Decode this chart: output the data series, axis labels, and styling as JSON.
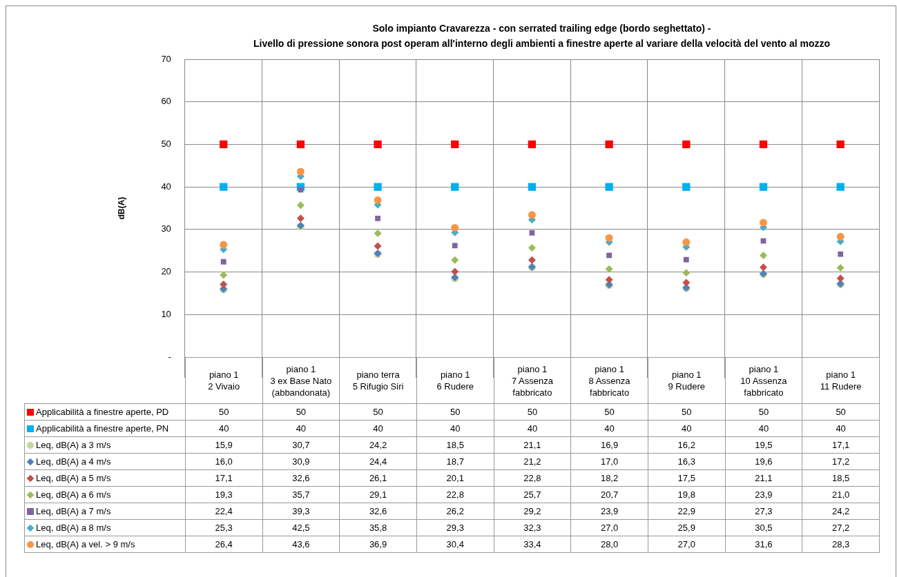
{
  "chart_data": {
    "type": "scatter",
    "title": "Solo impianto Cravarezza - con serrated trailing edge (bordo seghettato) -\nLivello di pressione sonora post operam all'interno degli ambienti a finestre aperte al variare della velocità del vento al mozzo",
    "ylabel": "dB(A)",
    "categories": [
      "piano 1\n2 Vivaio",
      "piano 1\n3 ex Base Nato (abbandonata)",
      "piano terra\n5 Rifugio Siri",
      "piano 1\n6 Rudere",
      "piano 1\n7 Assenza fabbricato",
      "piano 1\n8 Assenza fabbricato",
      "piano 1\n9 Rudere",
      "piano 1\n10 Assenza fabbricato",
      "piano 1\n11 Rudere"
    ],
    "ylim": [
      0,
      70
    ],
    "yticks": [
      {
        "value": 0,
        "label": "-"
      },
      10,
      20,
      30,
      40,
      50,
      60,
      70
    ],
    "grid": true,
    "legend": "bottom",
    "series": [
      {
        "name": "Applicabilità a finestre aperte, PD",
        "color": "#ff0000",
        "marker": "square",
        "values": [
          50,
          50,
          50,
          50,
          50,
          50,
          50,
          50,
          50
        ],
        "value_labels": [
          "50",
          "50",
          "50",
          "50",
          "50",
          "50",
          "50",
          "50",
          "50"
        ]
      },
      {
        "name": "Applicabilità a finestre aperte, PN",
        "color": "#00b0f0",
        "marker": "square",
        "values": [
          40,
          40,
          40,
          40,
          40,
          40,
          40,
          40,
          40
        ],
        "value_labels": [
          "40",
          "40",
          "40",
          "40",
          "40",
          "40",
          "40",
          "40",
          "40"
        ]
      },
      {
        "name": "Leq, dB(A) a 3 m/s",
        "color": "#c3d69b",
        "marker": "circle",
        "values": [
          15.9,
          30.7,
          24.2,
          18.5,
          21.1,
          16.9,
          16.2,
          19.5,
          17.1
        ],
        "value_labels": [
          "15,9",
          "30,7",
          "24,2",
          "18,5",
          "21,1",
          "16,9",
          "16,2",
          "19,5",
          "17,1"
        ]
      },
      {
        "name": "Leq, dB(A) a 4 m/s",
        "color": "#4f81bd",
        "marker": "diamond",
        "values": [
          16.0,
          30.9,
          24.4,
          18.7,
          21.2,
          17.0,
          16.3,
          19.6,
          17.2
        ],
        "value_labels": [
          "16,0",
          "30,9",
          "24,4",
          "18,7",
          "21,2",
          "17,0",
          "16,3",
          "19,6",
          "17,2"
        ]
      },
      {
        "name": "Leq, dB(A) a 5 m/s",
        "color": "#c0504d",
        "marker": "diamond",
        "values": [
          17.1,
          32.6,
          26.1,
          20.1,
          22.8,
          18.2,
          17.5,
          21.1,
          18.5
        ],
        "value_labels": [
          "17,1",
          "32,6",
          "26,1",
          "20,1",
          "22,8",
          "18,2",
          "17,5",
          "21,1",
          "18,5"
        ]
      },
      {
        "name": "Leq, dB(A) a 6 m/s",
        "color": "#9bbb59",
        "marker": "diamond",
        "values": [
          19.3,
          35.7,
          29.1,
          22.8,
          25.7,
          20.7,
          19.8,
          23.9,
          21.0
        ],
        "value_labels": [
          "19,3",
          "35,7",
          "29,1",
          "22,8",
          "25,7",
          "20,7",
          "19,8",
          "23,9",
          "21,0"
        ]
      },
      {
        "name": "Leq, dB(A) a 7 m/s",
        "color": "#8064a2",
        "marker": "square",
        "values": [
          22.4,
          39.3,
          32.6,
          26.2,
          29.2,
          23.9,
          22.9,
          27.3,
          24.2
        ],
        "value_labels": [
          "22,4",
          "39,3",
          "32,6",
          "26,2",
          "29,2",
          "23,9",
          "22,9",
          "27,3",
          "24,2"
        ]
      },
      {
        "name": "Leq, dB(A) a 8 m/s",
        "color": "#4bacc6",
        "marker": "diamond",
        "values": [
          25.3,
          42.5,
          35.8,
          29.3,
          32.3,
          27.0,
          25.9,
          30.5,
          27.2
        ],
        "value_labels": [
          "25,3",
          "42,5",
          "35,8",
          "29,3",
          "32,3",
          "27,0",
          "25,9",
          "30,5",
          "27,2"
        ]
      },
      {
        "name": "Leq, dB(A) a vel. > 9 m/s",
        "color": "#f79646",
        "marker": "circle",
        "values": [
          26.4,
          43.6,
          36.9,
          30.4,
          33.4,
          28.0,
          27.0,
          31.6,
          28.3
        ],
        "value_labels": [
          "26,4",
          "43,6",
          "36,9",
          "30,4",
          "33,4",
          "28,0",
          "27,0",
          "31,6",
          "28,3"
        ]
      }
    ]
  }
}
